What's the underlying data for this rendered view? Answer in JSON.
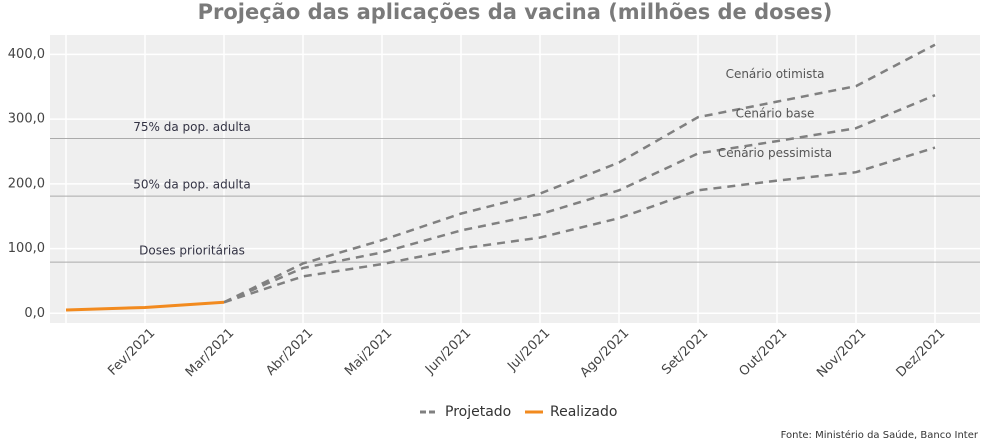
{
  "chart_data": {
    "type": "line",
    "title": "Projeção das aplicações da vacina (milhões de doses)",
    "categories": [
      null,
      "Fev/2021",
      "Mar/2021",
      "Abr/2021",
      "Mai/2021",
      "Jun/2021",
      "Jul/2021",
      "Ago/2021",
      "Set/2021",
      "Out/2021",
      "Nov/2021",
      "Dez/2021"
    ],
    "series": [
      {
        "name": "Cenário otimista",
        "color": "#808080",
        "dashed": true,
        "values": [
          null,
          null,
          17,
          77,
          113,
          154,
          185,
          233,
          303,
          327,
          351,
          415
        ]
      },
      {
        "name": "Cenário base",
        "color": "#808080",
        "dashed": true,
        "values": [
          null,
          null,
          17,
          70,
          94,
          128,
          153,
          190,
          247,
          266,
          286,
          337
        ]
      },
      {
        "name": "Cenário pessimista",
        "color": "#808080",
        "dashed": true,
        "values": [
          null,
          null,
          17,
          57,
          76,
          100,
          117,
          147,
          190,
          205,
          218,
          256
        ]
      },
      {
        "name": "Realizado",
        "color": "#f28a1e",
        "dashed": false,
        "values": [
          5,
          9,
          17,
          null,
          null,
          null,
          null,
          null,
          null,
          null,
          null,
          null
        ]
      }
    ],
    "reference_lines": [
      {
        "label": "75% da pop. adulta",
        "value": 270
      },
      {
        "label": "50% da pop. adulta",
        "value": 181
      },
      {
        "label": "Doses prioritárias",
        "value": 79
      }
    ],
    "legend": [
      {
        "label": "Projetado",
        "color": "#808080",
        "dashed": true
      },
      {
        "label": "Realizado",
        "color": "#f28a1e",
        "dashed": false
      }
    ],
    "ylim": [
      -15,
      430
    ],
    "yticks": [
      {
        "value": 0,
        "label": "0,0"
      },
      {
        "value": 100,
        "label": "100,0"
      },
      {
        "value": 200,
        "label": "200,0"
      },
      {
        "value": 300,
        "label": "300,0"
      },
      {
        "value": 400,
        "label": "400,0"
      }
    ],
    "grid": true,
    "source": "Fonte: Ministério da Saúde, Banco Inter"
  }
}
